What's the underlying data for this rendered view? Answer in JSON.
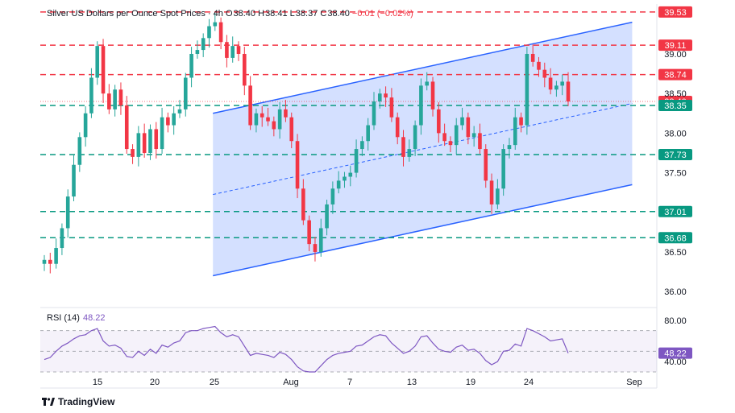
{
  "header": {
    "symbol_title": "Silver US Dollars per Ounce Spot Prices",
    "interval": "4h",
    "open_label": "O",
    "open": "38.40",
    "high_label": "H",
    "high": "38.41",
    "low_label": "L",
    "low": "38.37",
    "close_label": "C",
    "close": "38.40",
    "change": "−0.01 (−0.02%)"
  },
  "rsi": {
    "label": "RSI (14)",
    "value": "48.22"
  },
  "brand": {
    "name": "TradingView"
  },
  "colors": {
    "up": "#26a69a",
    "down": "#f23645",
    "channel_line": "#2962ff",
    "channel_fill": "#2962ff",
    "rsi_line": "#7e57c2"
  },
  "chart_data": {
    "type": "candlestick",
    "title": "Silver US Dollars per Ounce Spot Prices",
    "interval": "4h",
    "x_ticks": [
      "15",
      "20",
      "25",
      "Aug",
      "7",
      "13",
      "19",
      "24",
      "Sep"
    ],
    "y_ticks": [
      "39.00",
      "38.50",
      "38.00",
      "37.50",
      "36.50",
      "36.00"
    ],
    "ylim": [
      35.9,
      39.63
    ],
    "price_series": [
      36.4,
      36.35,
      36.55,
      36.8,
      37.2,
      37.6,
      37.95,
      38.25,
      38.7,
      39.1,
      38.5,
      38.3,
      38.55,
      38.35,
      37.8,
      37.7,
      38.0,
      37.75,
      38.05,
      37.8,
      38.2,
      38.1,
      38.25,
      38.3,
      38.7,
      39.0,
      39.05,
      39.2,
      39.35,
      39.4,
      39.15,
      38.95,
      39.1,
      39.0,
      38.6,
      38.1,
      38.25,
      38.2,
      38.15,
      38.05,
      38.3,
      38.2,
      37.9,
      37.3,
      36.9,
      36.6,
      36.5,
      36.8,
      37.1,
      37.3,
      37.4,
      37.45,
      37.5,
      37.8,
      37.9,
      38.1,
      38.4,
      38.5,
      38.45,
      38.2,
      37.95,
      37.7,
      37.8,
      38.1,
      38.6,
      38.65,
      38.3,
      38.0,
      37.9,
      37.85,
      38.1,
      38.2,
      37.95,
      38.0,
      37.8,
      37.4,
      37.1,
      37.3,
      37.8,
      37.85,
      38.2,
      38.1,
      39.0,
      38.9,
      38.8,
      38.7,
      38.55,
      38.6,
      38.65,
      38.4
    ],
    "levels": [
      {
        "value": 39.53,
        "label": "39.53",
        "style": "red-dashed"
      },
      {
        "value": 39.11,
        "label": "39.11",
        "style": "red-dashed"
      },
      {
        "value": 38.74,
        "label": "38.74",
        "style": "red-dashed"
      },
      {
        "value": 38.4,
        "label": "38.40",
        "style": "last-price"
      },
      {
        "value": 38.35,
        "label": "38.35",
        "style": "green-dashed"
      },
      {
        "value": 37.73,
        "label": "37.73",
        "style": "green-dashed"
      },
      {
        "value": 37.01,
        "label": "37.01",
        "style": "green-dashed"
      },
      {
        "value": 36.68,
        "label": "36.68",
        "style": "green-dashed"
      }
    ],
    "channel": {
      "upper": [
        [
          0.28,
          38.25
        ],
        [
          0.96,
          39.4
        ]
      ],
      "lower": [
        [
          0.28,
          36.2
        ],
        [
          0.96,
          37.35
        ]
      ]
    },
    "rsi": {
      "label": "RSI (14)",
      "current": 48.22,
      "y_ticks": [
        "80.00",
        "40.00"
      ],
      "ylim": [
        30,
        90
      ],
      "series": [
        42,
        44,
        50,
        55,
        58,
        62,
        65,
        66,
        70,
        72,
        60,
        55,
        56,
        53,
        45,
        44,
        50,
        46,
        52,
        48,
        56,
        54,
        58,
        60,
        68,
        70,
        70,
        72,
        73,
        74,
        68,
        64,
        66,
        64,
        55,
        46,
        48,
        47,
        46,
        44,
        49,
        47,
        42,
        35,
        31,
        30,
        30,
        36,
        42,
        46,
        48,
        49,
        50,
        55,
        56,
        60,
        64,
        66,
        65,
        58,
        53,
        48,
        50,
        55,
        64,
        65,
        58,
        52,
        50,
        49,
        54,
        56,
        51,
        52,
        48,
        41,
        37,
        40,
        50,
        51,
        57,
        55,
        72,
        70,
        67,
        64,
        60,
        61,
        62,
        48.22
      ]
    }
  }
}
